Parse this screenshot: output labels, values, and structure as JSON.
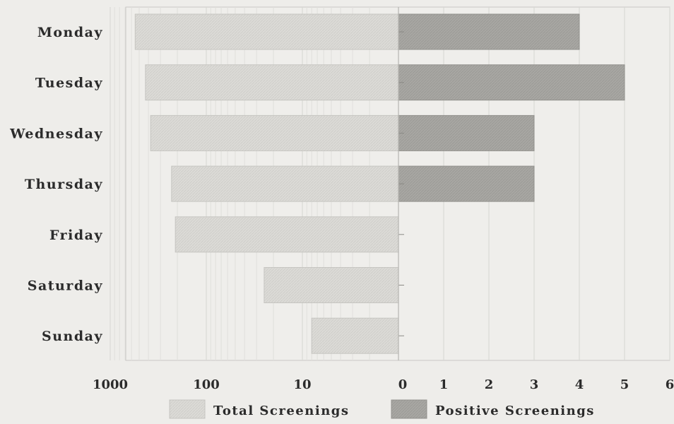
{
  "chart_data": {
    "type": "bar",
    "orientation": "horizontal",
    "categories": [
      "Monday",
      "Tuesday",
      "Wednesday",
      "Thursday",
      "Friday",
      "Saturday",
      "Sunday"
    ],
    "series": [
      {
        "name": "Total Screenings",
        "values": [
          550,
          430,
          380,
          230,
          210,
          25,
          8
        ],
        "scale": "log",
        "direction": "left",
        "color": "#d9d8d4"
      },
      {
        "name": "Positive Screenings",
        "values": [
          4,
          5,
          3,
          3,
          0,
          0,
          0
        ],
        "scale": "linear",
        "direction": "right",
        "color": "#a9a8a4"
      }
    ],
    "left_axis": {
      "ticks": [
        "1000",
        "100",
        "10",
        "0"
      ],
      "tick_values": [
        1000,
        100,
        10,
        1
      ]
    },
    "right_axis": {
      "ticks": [
        "1",
        "2",
        "3",
        "4",
        "5",
        "6"
      ],
      "range": [
        0,
        6
      ]
    },
    "legend": "bottom",
    "grid": true
  }
}
